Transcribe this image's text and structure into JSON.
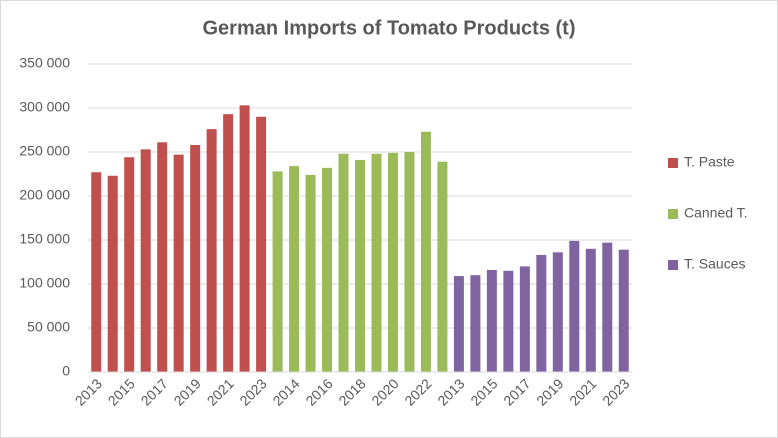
{
  "chart_data": {
    "type": "bar",
    "title": "German Imports of Tomato Products (t)",
    "categories": [
      "2013",
      null,
      "2015",
      null,
      "2017",
      null,
      "2019",
      null,
      "2021",
      null,
      "2023",
      null,
      "2014",
      null,
      "2016",
      null,
      "2018",
      null,
      "2020",
      null,
      "2022",
      null,
      "2013",
      null,
      "2015",
      null,
      "2017",
      null,
      "2019",
      null,
      "2021",
      null,
      "2023"
    ],
    "series": [
      {
        "name": "T. Paste",
        "color": "#c0504d",
        "values": [
          227000,
          223000,
          244000,
          253000,
          261000,
          247000,
          258000,
          276000,
          293000,
          303000,
          290000,
          null,
          null,
          null,
          null,
          null,
          null,
          null,
          null,
          null,
          null,
          null,
          null,
          null,
          null,
          null,
          null,
          null,
          null,
          null,
          null,
          null,
          null
        ]
      },
      {
        "name": "Canned T.",
        "color": "#9bbb59",
        "values": [
          null,
          null,
          null,
          null,
          null,
          null,
          null,
          null,
          null,
          null,
          null,
          228000,
          234000,
          224000,
          232000,
          248000,
          241000,
          248000,
          249000,
          250000,
          273000,
          239000,
          null,
          null,
          null,
          null,
          null,
          null,
          null,
          null,
          null,
          null,
          null
        ]
      },
      {
        "name": "T. Sauces",
        "color": "#8064a2",
        "values": [
          null,
          null,
          null,
          null,
          null,
          null,
          null,
          null,
          null,
          null,
          null,
          null,
          null,
          null,
          null,
          null,
          null,
          null,
          null,
          null,
          null,
          null,
          109000,
          110000,
          116000,
          115000,
          120000,
          133000,
          136000,
          149000,
          140000,
          147000,
          139000
        ]
      }
    ],
    "ylim": [
      0,
      350000
    ],
    "yticks": [
      0,
      {
        "value": 50000,
        "label": "50 000"
      },
      {
        "value": 100000,
        "label": "100 000"
      },
      {
        "value": 150000,
        "label": "150 000"
      },
      {
        "value": 200000,
        "label": "200 000"
      },
      {
        "value": 250000,
        "label": "250 000"
      },
      {
        "value": 300000,
        "label": "300 000"
      },
      {
        "value": 350000,
        "label": "350 000"
      }
    ],
    "grid": true,
    "legend": "right"
  }
}
